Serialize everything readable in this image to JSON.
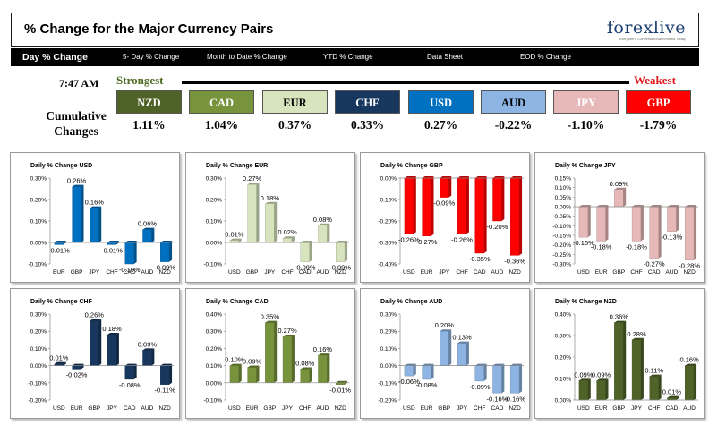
{
  "header": {
    "title": "% Change for the Major Currency Pairs",
    "logo": "forexlive",
    "logo_tagline": "Everyone's Conversational Window Today"
  },
  "nav": {
    "items": [
      {
        "label": "Day % Change",
        "active": true
      },
      {
        "label": "5- Day % Change",
        "active": false
      },
      {
        "label": "Month to Date % Change",
        "active": false
      },
      {
        "label": "YTD % Change",
        "active": false
      },
      {
        "label": "Data Sheet",
        "active": false
      },
      {
        "label": "EOD % Change",
        "active": false
      }
    ]
  },
  "summary": {
    "time": "7:47 AM",
    "strongest_label": "Strongest",
    "weakest_label": "Weakest",
    "cumulative_label_1": "Cumulative",
    "cumulative_label_2": "Changes",
    "currencies": [
      {
        "code": "NZD",
        "value": "1.11%",
        "head_bg": "#4f6228",
        "head_fg": "#ffffff"
      },
      {
        "code": "CAD",
        "value": "1.04%",
        "head_bg": "#77933c",
        "head_fg": "#ffffff"
      },
      {
        "code": "EUR",
        "value": "0.37%",
        "head_bg": "#d7e4bd",
        "head_fg": "#000000"
      },
      {
        "code": "CHF",
        "value": "0.33%",
        "head_bg": "#17375e",
        "head_fg": "#ffffff"
      },
      {
        "code": "USD",
        "value": "0.27%",
        "head_bg": "#0070c0",
        "head_fg": "#ffffff"
      },
      {
        "code": "AUD",
        "value": "-0.22%",
        "head_bg": "#8db4e2",
        "head_fg": "#000000"
      },
      {
        "code": "JPY",
        "value": "-1.10%",
        "head_bg": "#e6b9b8",
        "head_fg": "#ffffff"
      },
      {
        "code": "GBP",
        "value": "-1.79%",
        "head_bg": "#ff0000",
        "head_fg": "#ffffff"
      }
    ]
  },
  "chart_data": [
    {
      "type": "bar",
      "title": "Daily % Change USD",
      "categories": [
        "EUR",
        "GBP",
        "JPY",
        "CHF",
        "CAD",
        "AUD",
        "NZD"
      ],
      "values": [
        -0.01,
        0.26,
        0.16,
        -0.01,
        -0.1,
        0.06,
        -0.09
      ],
      "labels": [
        "-0.01%",
        "0.26%",
        "0.16%",
        "-0.01%",
        "-0.10%",
        "0.06%",
        "-0.09%"
      ],
      "ylim": [
        -0.1,
        0.3
      ],
      "ticks": [
        "0.30%",
        "0.20%",
        "0.10%",
        "0.00%",
        "-0.10%"
      ],
      "bar_color": "#0070c0"
    },
    {
      "type": "bar",
      "title": "Daily % Change EUR",
      "categories": [
        "USD",
        "GBP",
        "JPY",
        "CHF",
        "CAD",
        "AUD",
        "NZD"
      ],
      "values": [
        0.01,
        0.27,
        0.18,
        0.02,
        -0.09,
        0.08,
        -0.09
      ],
      "labels": [
        "0.01%",
        "0.27%",
        "0.18%",
        "0.02%",
        "-0.09%",
        "0.08%",
        "-0.09%"
      ],
      "ylim": [
        -0.1,
        0.3
      ],
      "ticks": [
        "0.30%",
        "0.20%",
        "0.10%",
        "0.00%",
        "-0.10%"
      ],
      "bar_color": "#d7e4bd"
    },
    {
      "type": "bar",
      "title": "Daily % Change GBP",
      "categories": [
        "USD",
        "EUR",
        "JPY",
        "CHF",
        "CAD",
        "AUD",
        "NZD"
      ],
      "values": [
        -0.26,
        -0.27,
        -0.09,
        -0.26,
        -0.35,
        -0.2,
        -0.36
      ],
      "labels": [
        "-0.26%",
        "-0.27%",
        "-0.09%",
        "-0.26%",
        "-0.35%",
        "-0.20%",
        "-0.36%"
      ],
      "ylim": [
        -0.4,
        0.0
      ],
      "ticks": [
        "0.00%",
        "-0.10%",
        "-0.20%",
        "-0.30%",
        "-0.40%"
      ],
      "bar_color": "#ff0000"
    },
    {
      "type": "bar",
      "title": "Daily % Change JPY",
      "categories": [
        "USD",
        "EUR",
        "GBP",
        "CHF",
        "CAD",
        "AUD",
        "NZD"
      ],
      "values": [
        -0.16,
        -0.18,
        0.09,
        -0.18,
        -0.27,
        -0.13,
        -0.28
      ],
      "labels": [
        "-0.16%",
        "-0.18%",
        "0.09%",
        "-0.18%",
        "-0.27%",
        "-0.13%",
        "-0.28%"
      ],
      "ylim": [
        -0.3,
        0.15
      ],
      "ticks": [
        "0.15%",
        "0.10%",
        "0.05%",
        "0.00%",
        "-0.05%",
        "-0.10%",
        "-0.15%",
        "-0.20%",
        "-0.25%",
        "-0.30%"
      ],
      "bar_color": "#e6b9b8"
    },
    {
      "type": "bar",
      "title": "Daily % Change CHF",
      "categories": [
        "USD",
        "EUR",
        "GBP",
        "JPY",
        "CAD",
        "AUD",
        "NZD"
      ],
      "values": [
        0.01,
        -0.02,
        0.26,
        0.18,
        -0.08,
        0.09,
        -0.11
      ],
      "labels": [
        "0.01%",
        "-0.02%",
        "0.26%",
        "0.18%",
        "-0.08%",
        "0.09%",
        "-0.11%"
      ],
      "ylim": [
        -0.2,
        0.3
      ],
      "ticks": [
        "0.30%",
        "0.20%",
        "0.10%",
        "0.00%",
        "-0.10%",
        "-0.20%"
      ],
      "bar_color": "#17375e"
    },
    {
      "type": "bar",
      "title": "Daily % Change CAD",
      "categories": [
        "USD",
        "EUR",
        "GBP",
        "JPY",
        "CHF",
        "AUD",
        "NZD"
      ],
      "values": [
        0.1,
        0.09,
        0.35,
        0.27,
        0.08,
        0.16,
        -0.01
      ],
      "labels": [
        "0.10%",
        "0.09%",
        "0.35%",
        "0.27%",
        "0.08%",
        "0.16%",
        "-0.01%"
      ],
      "ylim": [
        -0.1,
        0.4
      ],
      "ticks": [
        "0.40%",
        "0.30%",
        "0.20%",
        "0.10%",
        "0.00%",
        "-0.10%"
      ],
      "bar_color": "#77933c"
    },
    {
      "type": "bar",
      "title": "Daily % Change AUD",
      "categories": [
        "USD",
        "EUR",
        "GBP",
        "JPY",
        "CHF",
        "CAD",
        "NZD"
      ],
      "values": [
        -0.06,
        -0.08,
        0.2,
        0.13,
        -0.09,
        -0.16,
        -0.16
      ],
      "labels": [
        "-0.06%",
        "-0.08%",
        "0.20%",
        "0.13%",
        "-0.09%",
        "-0.16%",
        "-0.16%"
      ],
      "ylim": [
        -0.2,
        0.3
      ],
      "ticks": [
        "0.30%",
        "0.20%",
        "0.10%",
        "0.00%",
        "-0.10%",
        "-0.20%"
      ],
      "bar_color": "#8db4e2"
    },
    {
      "type": "bar",
      "title": "Daily % Change NZD",
      "categories": [
        "USD",
        "EUR",
        "GBP",
        "JPY",
        "CHF",
        "CAD",
        "AUD"
      ],
      "values": [
        0.09,
        0.09,
        0.36,
        0.28,
        0.11,
        0.01,
        0.16
      ],
      "labels": [
        "0.09%",
        "0.09%",
        "0.36%",
        "0.28%",
        "0.11%",
        "0.01%",
        "0.16%"
      ],
      "ylim": [
        0.0,
        0.4
      ],
      "ticks": [
        "0.40%",
        "0.30%",
        "0.20%",
        "0.10%",
        "0.00%"
      ],
      "bar_color": "#4f6228"
    }
  ]
}
